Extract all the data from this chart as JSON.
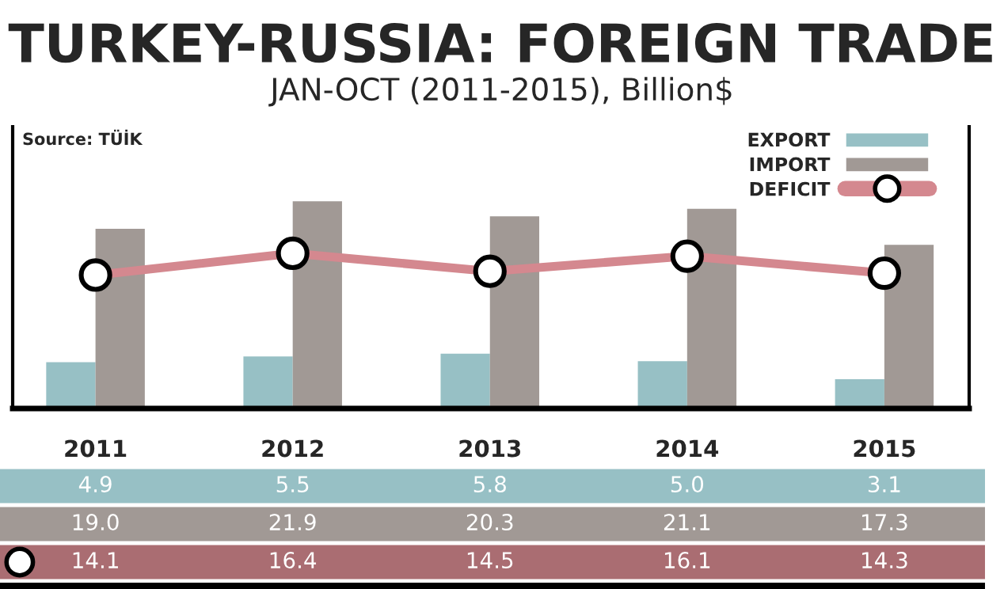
{
  "chart_data": {
    "type": "bar",
    "title": "TURKEY-RUSSIA: FOREIGN TRADE",
    "subtitle": "JAN-OCT (2011-2015), Billion$",
    "annotations": [
      "Source: TÜİK"
    ],
    "categories": [
      "2011",
      "2012",
      "2013",
      "2014",
      "2015"
    ],
    "series": [
      {
        "name": "EXPORT",
        "color": "#97c0c5",
        "values": [
          4.9,
          5.5,
          5.8,
          5.0,
          3.1
        ],
        "value_labels": [
          "4.9",
          "5.5",
          "5.8",
          "5.0",
          "3.1"
        ]
      },
      {
        "name": "IMPORT",
        "color": "#a19995",
        "values": [
          19.0,
          21.9,
          20.3,
          21.1,
          17.3
        ],
        "value_labels": [
          "19.0",
          "21.9",
          "20.3",
          "21.1",
          "17.3"
        ]
      },
      {
        "name": "DEFICIT",
        "type": "line",
        "color": "#d4888f",
        "marker": "circle",
        "values": [
          14.1,
          16.4,
          14.5,
          16.1,
          14.3
        ],
        "value_labels": [
          "14.1",
          "16.4",
          "14.5",
          "16.1",
          "14.3"
        ]
      }
    ],
    "legend": "top right",
    "grid": false
  }
}
